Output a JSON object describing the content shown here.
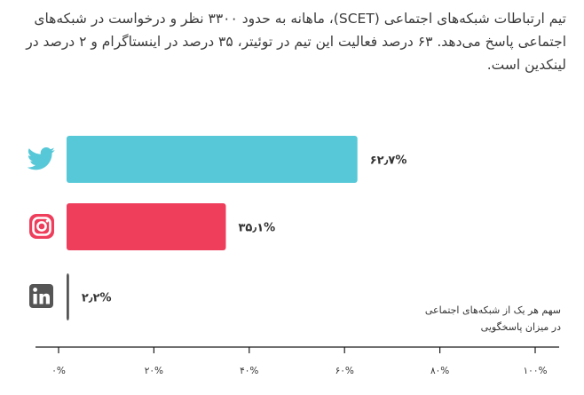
{
  "intro": {
    "text": "تیم ارتباطات شبکه‌های اجتماعی (SCET)، ماهانه به حدود ۳۳۰۰ نظر و درخواست در شبکه‌های اجتماعی پاسخ می‌دهد. ۶۳ درصد فعالیت این تیم در توئیتر، ۳۵ درصد در اینستاگرام و ۲ درصد در لینکدین است."
  },
  "note": {
    "line1": "سهم هر یک از شبکه‌های اجتماعی",
    "line2": "در میزان پاسخگویی"
  },
  "chart_data": {
    "type": "bar",
    "orientation": "horizontal",
    "categories": [
      "twitter",
      "instagram",
      "linkedin"
    ],
    "values": [
      62.7,
      35.1,
      2.2
    ],
    "value_labels": [
      "۶۲٫۷%",
      "۳۵٫۱%",
      "۲٫۲%"
    ],
    "icons": [
      "twitter-icon",
      "instagram-icon",
      "linkedin-icon"
    ],
    "colors": [
      "#56c8d8",
      "#ee3e5c",
      "#555555"
    ],
    "xlim": [
      0,
      100
    ],
    "xticks": [
      0,
      20,
      40,
      60,
      80,
      100
    ],
    "xtick_labels": [
      "۰%",
      "۲۰%",
      "۴۰%",
      "۶۰%",
      "۸۰%",
      "۱۰۰%"
    ],
    "grid": false,
    "axis_color": "#1a1a1a"
  }
}
